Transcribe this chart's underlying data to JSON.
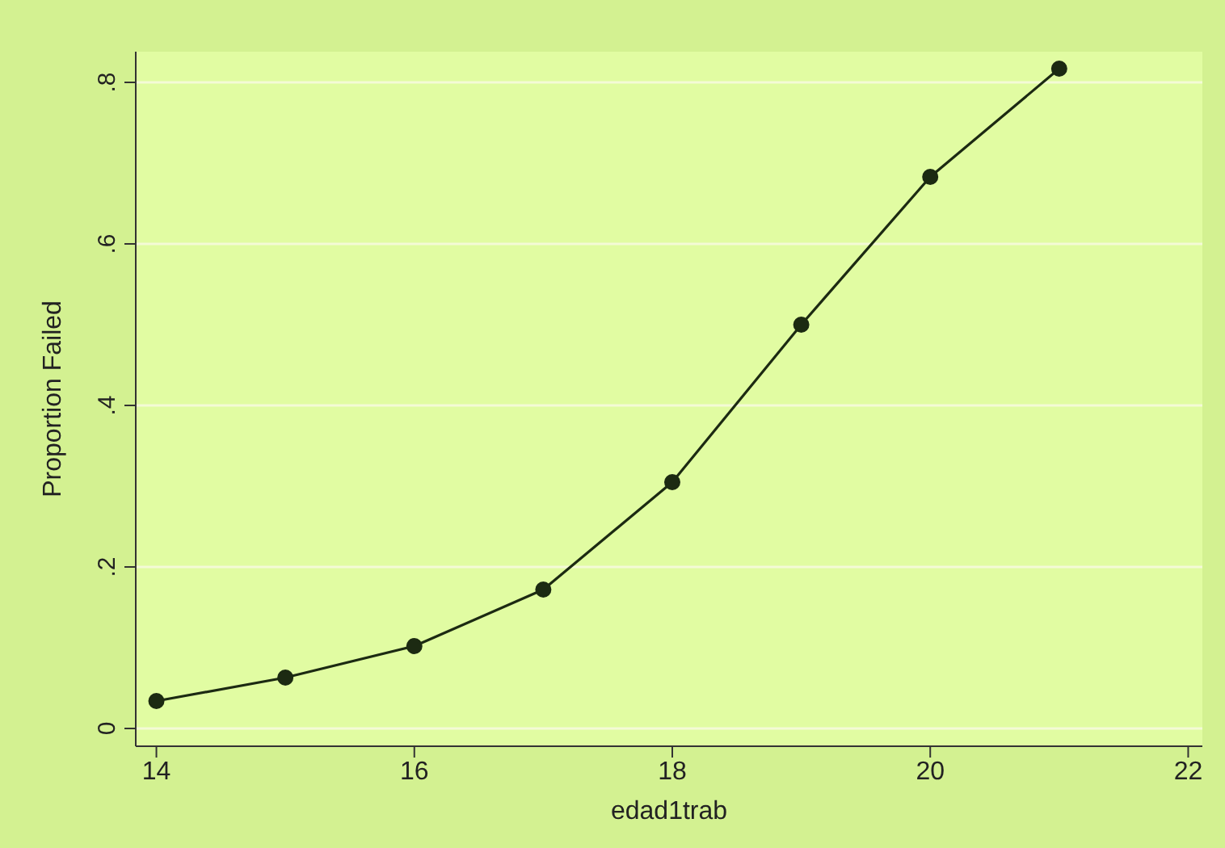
{
  "chart_data": {
    "type": "line",
    "xlabel": "edad1trab",
    "ylabel": "Proportion Failed",
    "x": [
      14,
      15,
      16,
      17,
      18,
      19,
      20,
      21
    ],
    "series": [
      {
        "color": "#1c2a12",
        "values": [
          0.034,
          0.063,
          0.102,
          0.172,
          0.305,
          0.5,
          0.683,
          0.817
        ]
      }
    ],
    "xlim": [
      13.84,
      22.11
    ],
    "xticks": [
      14,
      16,
      18,
      20,
      22
    ],
    "ylim": [
      -0.022,
      0.838
    ],
    "yticks": [
      0,
      {
        "value": 0.2,
        "label": ".2"
      },
      {
        "value": 0.4,
        "label": ".4"
      },
      {
        "value": 0.6,
        "label": ".6"
      },
      {
        "value": 0.8,
        "label": ".8"
      }
    ],
    "grid": "y",
    "marker": "circle",
    "line_style": "solid",
    "legend": false
  }
}
